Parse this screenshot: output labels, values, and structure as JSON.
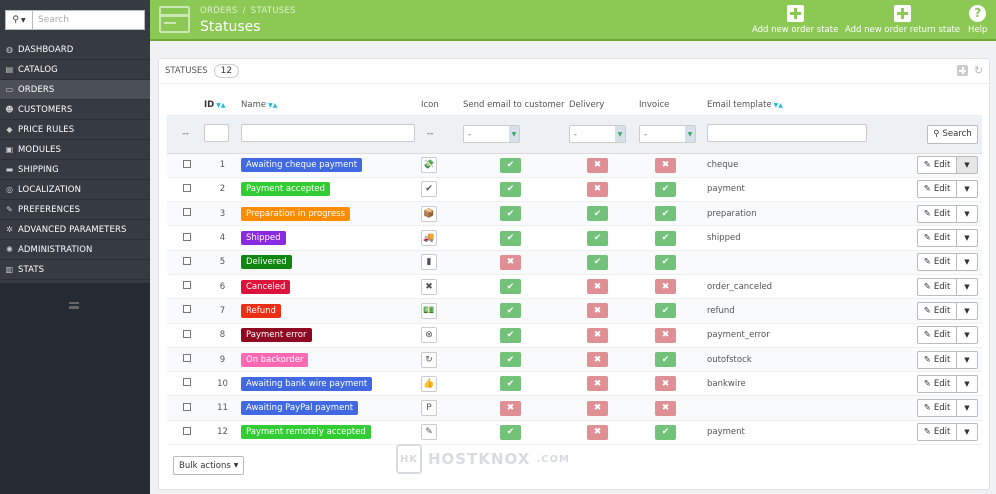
{
  "search": {
    "placeholder": "Search"
  },
  "sidebar": {
    "items": [
      {
        "label": "DASHBOARD",
        "icon": "dashboard-icon",
        "glyph": "◍"
      },
      {
        "label": "CATALOG",
        "icon": "catalog-icon",
        "glyph": "▤"
      },
      {
        "label": "ORDERS",
        "icon": "orders-icon",
        "glyph": "▭"
      },
      {
        "label": "CUSTOMERS",
        "icon": "customers-icon",
        "glyph": "☻"
      },
      {
        "label": "PRICE RULES",
        "icon": "tag-icon",
        "glyph": "◆"
      },
      {
        "label": "MODULES",
        "icon": "puzzle-icon",
        "glyph": "▣"
      },
      {
        "label": "SHIPPING",
        "icon": "truck-icon",
        "glyph": "▬"
      },
      {
        "label": "LOCALIZATION",
        "icon": "globe-icon",
        "glyph": "◎"
      },
      {
        "label": "PREFERENCES",
        "icon": "wrench-icon",
        "glyph": "✎"
      },
      {
        "label": "ADVANCED PARAMETERS",
        "icon": "cogs-icon",
        "glyph": "✲"
      },
      {
        "label": "ADMINISTRATION",
        "icon": "gear-icon",
        "glyph": "✺"
      },
      {
        "label": "STATS",
        "icon": "bar-chart-icon",
        "glyph": "▥"
      }
    ],
    "active_index": 2
  },
  "header": {
    "breadcrumb": [
      "ORDERS",
      "/",
      "STATUSES"
    ],
    "title": "Statuses",
    "actions": [
      {
        "label": "Add new order state",
        "icon": "plus-icon"
      },
      {
        "label": "Add new order return state",
        "icon": "plus-icon"
      },
      {
        "label": "Help",
        "icon": "help-icon"
      }
    ],
    "color": "#8bc954"
  },
  "panel": {
    "title": "STATUSES",
    "count": "12",
    "columns": {
      "id": "ID",
      "name": "Name",
      "icon": "Icon",
      "send_email": "Send email to customer",
      "delivery": "Delivery",
      "invoice": "Invoice",
      "template": "Email template"
    },
    "filter": {
      "placeholder_dash": "--",
      "select_value": "-",
      "search_label": "Search"
    },
    "edit_label": "Edit",
    "bulk_label": "Bulk actions"
  },
  "rows": [
    {
      "id": "1",
      "name": "Awaiting cheque payment",
      "color": "#4169e1",
      "icon": "money-icon",
      "glyph": "💸",
      "email": true,
      "delivery": false,
      "invoice": false,
      "template": "cheque"
    },
    {
      "id": "2",
      "name": "Payment accepted",
      "color": "#32cd32",
      "icon": "check-icon",
      "glyph": "✔",
      "email": true,
      "delivery": false,
      "invoice": true,
      "template": "payment"
    },
    {
      "id": "3",
      "name": "Preparation in progress",
      "color": "#ff8c00",
      "icon": "package-icon",
      "glyph": "📦",
      "email": true,
      "delivery": true,
      "invoice": true,
      "template": "preparation"
    },
    {
      "id": "4",
      "name": "Shipped",
      "color": "#8a2be2",
      "icon": "truck-icon",
      "glyph": "🚚",
      "email": true,
      "delivery": true,
      "invoice": true,
      "template": "shipped"
    },
    {
      "id": "5",
      "name": "Delivered",
      "color": "#108510",
      "icon": "box-icon",
      "glyph": "▮",
      "email": false,
      "delivery": true,
      "invoice": true,
      "template": ""
    },
    {
      "id": "6",
      "name": "Canceled",
      "color": "#dc143c",
      "icon": "cross-icon",
      "glyph": "✖",
      "email": true,
      "delivery": false,
      "invoice": false,
      "template": "order_canceled"
    },
    {
      "id": "7",
      "name": "Refund",
      "color": "#ec2e15",
      "icon": "refund-icon",
      "glyph": "💵",
      "email": true,
      "delivery": false,
      "invoice": true,
      "template": "refund"
    },
    {
      "id": "8",
      "name": "Payment error",
      "color": "#8f0621",
      "icon": "error-icon",
      "glyph": "⊗",
      "email": true,
      "delivery": false,
      "invoice": false,
      "template": "payment_error"
    },
    {
      "id": "9",
      "name": "On backorder",
      "color": "#ff69b4",
      "icon": "refresh-icon",
      "glyph": "↻",
      "email": true,
      "delivery": false,
      "invoice": true,
      "template": "outofstock"
    },
    {
      "id": "10",
      "name": "Awaiting bank wire payment",
      "color": "#4169e1",
      "icon": "thumbs-up-icon",
      "glyph": "👍",
      "email": true,
      "delivery": false,
      "invoice": false,
      "template": "bankwire"
    },
    {
      "id": "11",
      "name": "Awaiting PayPal payment",
      "color": "#4169e1",
      "icon": "paypal-icon",
      "glyph": "P",
      "email": false,
      "delivery": false,
      "invoice": false,
      "template": ""
    },
    {
      "id": "12",
      "name": "Payment remotely accepted",
      "color": "#32cd32",
      "icon": "pay-icon",
      "glyph": "✎",
      "email": true,
      "delivery": false,
      "invoice": true,
      "template": "payment"
    }
  ],
  "watermark": {
    "text": "HOSTKNOX",
    "suffix": ".COM",
    "logo": "HK"
  }
}
